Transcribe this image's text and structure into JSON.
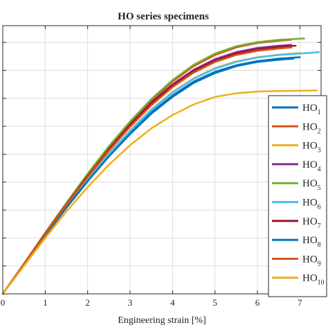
{
  "chart_data": {
    "type": "line",
    "title": "HO series specimens",
    "xlabel": "Engineering strain [%]",
    "ylabel": "",
    "xlim": [
      0,
      7.5
    ],
    "ylim": [
      0,
      9.6
    ],
    "x_ticks": [
      "0",
      "1",
      "2",
      "3",
      "4",
      "5",
      "6",
      "7"
    ],
    "y_ticks": [
      0,
      1,
      2,
      3,
      4,
      5,
      6,
      7,
      8,
      9
    ],
    "grid": true,
    "legend_position": "right",
    "series": [
      {
        "name": "HO1",
        "label_main": "HO",
        "label_sub": "1",
        "color": "#0072BD",
        "x": [
          0,
          0.5,
          1,
          1.5,
          2,
          2.5,
          3,
          3.5,
          4,
          4.5,
          5,
          5.5,
          6,
          6.5,
          7.0
        ],
        "y": [
          0,
          1.05,
          2.1,
          3.1,
          4.05,
          4.95,
          5.75,
          6.5,
          7.1,
          7.6,
          7.95,
          8.18,
          8.33,
          8.42,
          8.47
        ]
      },
      {
        "name": "HO2",
        "label_main": "HO",
        "label_sub": "2",
        "color": "#D95319",
        "x": [
          0,
          0.5,
          1,
          1.5,
          2,
          2.5,
          3,
          3.5,
          4,
          4.5,
          5,
          5.5,
          6,
          6.5,
          6.8
        ],
        "y": [
          0,
          1.08,
          2.18,
          3.25,
          4.28,
          5.25,
          6.13,
          6.92,
          7.6,
          8.15,
          8.55,
          8.82,
          8.98,
          9.06,
          9.1
        ]
      },
      {
        "name": "HO3",
        "label_main": "HO",
        "label_sub": "3",
        "color": "#EDB120",
        "x": [
          0,
          0.5,
          1,
          1.5,
          2,
          2.5,
          3,
          3.5,
          4,
          4.5,
          5,
          5.5,
          6,
          6.5,
          7.0
        ],
        "y": [
          0,
          1.05,
          2.1,
          3.12,
          4.1,
          5.02,
          5.85,
          6.6,
          7.22,
          7.72,
          8.08,
          8.32,
          8.47,
          8.56,
          8.62
        ]
      },
      {
        "name": "HO4",
        "label_main": "HO",
        "label_sub": "4",
        "color": "#7E2F8E",
        "x": [
          0,
          0.5,
          1,
          1.5,
          2,
          2.5,
          3,
          3.5,
          4,
          4.5,
          5,
          5.5,
          6,
          6.5,
          6.8
        ],
        "y": [
          0,
          1.07,
          2.16,
          3.22,
          4.24,
          5.2,
          6.07,
          6.85,
          7.5,
          8.02,
          8.4,
          8.65,
          8.8,
          8.88,
          8.91
        ]
      },
      {
        "name": "HO5",
        "label_main": "HO",
        "label_sub": "5",
        "color": "#77AC30",
        "x": [
          0,
          0.5,
          1,
          1.5,
          2,
          2.5,
          3,
          3.5,
          4,
          4.5,
          5,
          5.5,
          6,
          6.5,
          7.1
        ],
        "y": [
          0,
          1.08,
          2.18,
          3.26,
          4.3,
          5.28,
          6.17,
          6.97,
          7.65,
          8.2,
          8.6,
          8.86,
          9.01,
          9.09,
          9.14
        ]
      },
      {
        "name": "HO6",
        "label_main": "HO",
        "label_sub": "6",
        "color": "#4DBEEE",
        "x": [
          0,
          0.5,
          1,
          1.5,
          2,
          2.5,
          3,
          3.5,
          4,
          4.5,
          5,
          5.5,
          6,
          6.5,
          7.0,
          7.45
        ],
        "y": [
          0,
          1.04,
          2.08,
          3.1,
          4.08,
          5.0,
          5.83,
          6.58,
          7.2,
          7.7,
          8.06,
          8.3,
          8.46,
          8.55,
          8.6,
          8.65
        ]
      },
      {
        "name": "HO7",
        "label_main": "HO",
        "label_sub": "7",
        "color": "#A2142F",
        "x": [
          0,
          0.5,
          1,
          1.5,
          2,
          2.5,
          3,
          3.5,
          4,
          4.5,
          5,
          5.5,
          6,
          6.5,
          6.9
        ],
        "y": [
          0,
          1.07,
          2.15,
          3.2,
          4.22,
          5.17,
          6.04,
          6.82,
          7.46,
          7.98,
          8.35,
          8.6,
          8.75,
          8.84,
          8.88
        ]
      },
      {
        "name": "HO8",
        "label_main": "HO",
        "label_sub": "8",
        "color": "#0072BD",
        "x": [
          0,
          0.5,
          1,
          1.5,
          2,
          2.5,
          3,
          3.5,
          4,
          4.5,
          5,
          5.5,
          6,
          6.5,
          6.85
        ],
        "y": [
          0,
          1.04,
          2.08,
          3.08,
          4.03,
          4.92,
          5.72,
          6.45,
          7.05,
          7.55,
          7.9,
          8.15,
          8.3,
          8.38,
          8.42
        ]
      },
      {
        "name": "HO9",
        "label_main": "HO",
        "label_sub": "9",
        "color": "#D95319",
        "x": [
          0,
          0.5,
          1,
          1.5,
          2,
          2.5,
          3,
          3.5,
          4,
          4.5,
          5,
          5.5,
          6,
          6.5,
          6.8
        ],
        "y": [
          0,
          1.06,
          2.13,
          3.18,
          4.18,
          5.12,
          5.98,
          6.75,
          7.4,
          7.92,
          8.3,
          8.55,
          8.7,
          8.78,
          8.82
        ]
      },
      {
        "name": "HO10",
        "label_main": "HO",
        "label_sub": "10",
        "color": "#EDB120",
        "x": [
          0,
          0.5,
          1,
          1.5,
          2,
          2.5,
          3,
          3.5,
          4,
          4.5,
          5,
          5.5,
          6,
          6.5,
          7.0,
          7.4
        ],
        "y": [
          0,
          1.0,
          2.0,
          2.95,
          3.82,
          4.62,
          5.32,
          5.92,
          6.4,
          6.78,
          7.05,
          7.18,
          7.24,
          7.26,
          7.27,
          7.28
        ]
      }
    ]
  }
}
